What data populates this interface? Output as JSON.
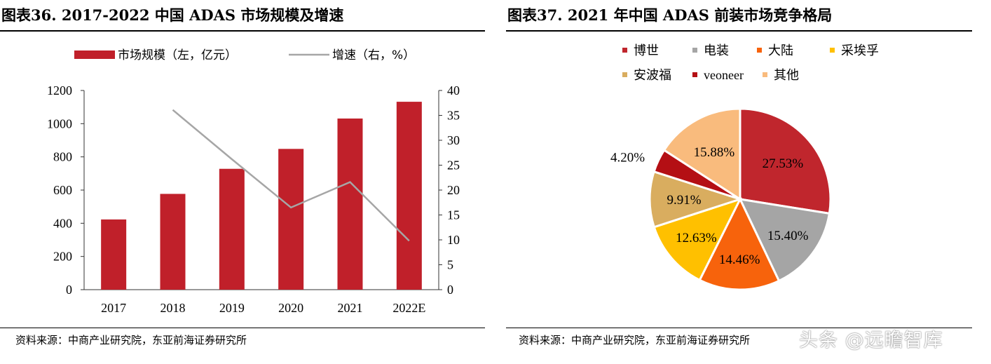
{
  "left": {
    "title": "图表36. 2017-2022 中国 ADAS 市场规模及增速",
    "source": "资料来源：中商产业研究院，东亚前海证券研究所"
  },
  "right": {
    "title": "图表37. 2021 年中国 ADAS 前装市场竞争格局",
    "source": "资料来源：中商产业研究院，东亚前海证券研究所"
  },
  "watermark": "头条 @远瞻智库",
  "chart_data": [
    {
      "type": "bar",
      "categories": [
        "2017",
        "2018",
        "2019",
        "2020",
        "2021",
        "2022E"
      ],
      "series": [
        {
          "name": "市场规模（左，亿元）",
          "type": "bar",
          "axis": "left",
          "color": "#c0202a",
          "values": [
            423,
            577,
            728,
            848,
            1031,
            1132
          ]
        },
        {
          "name": "增速（右，%）",
          "type": "line",
          "axis": "right",
          "color": "#a6a6a6",
          "values": [
            null,
            36.1,
            26.2,
            16.5,
            21.6,
            9.8
          ]
        }
      ],
      "y_left": {
        "min": 0,
        "max": 1200,
        "ticks": [
          0,
          200,
          400,
          600,
          800,
          1000,
          1200
        ]
      },
      "y_right": {
        "min": 0,
        "max": 40,
        "ticks": [
          0,
          5,
          10,
          15,
          20,
          25,
          30,
          35,
          40
        ]
      },
      "legend_position": "top"
    },
    {
      "type": "pie",
      "slices": [
        {
          "label": "博世",
          "value": 27.53,
          "text": "27.53%",
          "color": "#c0262d"
        },
        {
          "label": "电装",
          "value": 15.4,
          "text": "15.40%",
          "color": "#a5a5a5"
        },
        {
          "label": "大陆",
          "value": 14.46,
          "text": "14.46%",
          "color": "#f7630c"
        },
        {
          "label": "采埃孚",
          "value": 12.63,
          "text": "12.63%",
          "color": "#ffc000"
        },
        {
          "label": "安波福",
          "value": 9.91,
          "text": "9.91%",
          "color": "#d9ad5f"
        },
        {
          "label": "veoneer",
          "value": 4.2,
          "text": "4.20%",
          "color": "#b40f14"
        },
        {
          "label": "其他",
          "value": 15.88,
          "text": "15.88%",
          "color": "#f9bb7d"
        }
      ],
      "legend_position": "top"
    }
  ]
}
